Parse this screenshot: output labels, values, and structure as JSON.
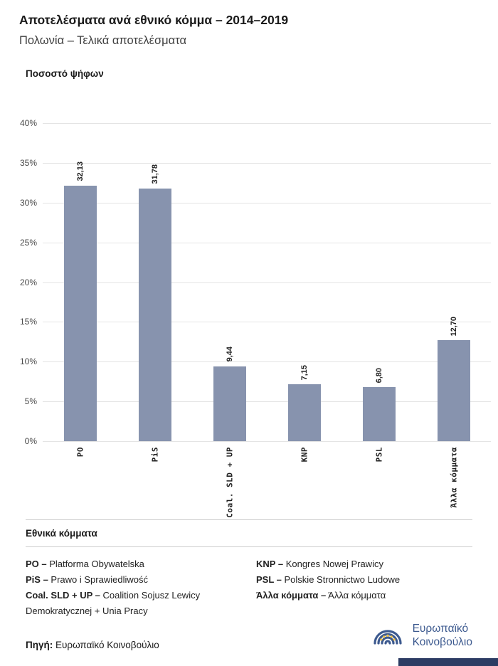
{
  "header": {
    "title": "Αποτελέσματα ανά εθνικό κόμμα – 2014–2019",
    "subtitle": "Πολωνία – Τελικά αποτελέσματα"
  },
  "chart_data": {
    "type": "bar",
    "title": "Ποσοστό ψήφων",
    "categories": [
      "PO",
      "PiS",
      "Coal. SLD + UP",
      "KNP",
      "PSL",
      "Άλλα κόμματα"
    ],
    "values": [
      32.13,
      31.78,
      9.44,
      7.15,
      6.8,
      12.7
    ],
    "value_labels": [
      "32,13",
      "31,78",
      "9,44",
      "7,15",
      "6,80",
      "12,70"
    ],
    "xlabel": "",
    "ylabel": "Ποσοστό ψήφων",
    "ylim": [
      0,
      40
    ],
    "ytick_step": 5,
    "ytick_labels": [
      "0%",
      "5%",
      "10%",
      "15%",
      "20%",
      "25%",
      "30%",
      "35%",
      "40%"
    ],
    "grid": true,
    "legend_position": "none",
    "bar_color": "#8793ae"
  },
  "legend": {
    "title": "Εθνικά κόμματα",
    "items": [
      {
        "abbr": "PO –",
        "name": "Platforma Obywatelska"
      },
      {
        "abbr": "PiS –",
        "name": "Prawo i Sprawiedliwość"
      },
      {
        "abbr": "Coal. SLD + UP –",
        "name": "Coalition Sojusz Lewicy Demokratycznej + Unia Pracy"
      },
      {
        "abbr": "KNP –",
        "name": "Kongres Nowej Prawicy"
      },
      {
        "abbr": "PSL –",
        "name": "Polskie Stronnictwo Ludowe"
      },
      {
        "abbr": "Άλλα κόμματα –",
        "name": "Άλλα κόμματα"
      }
    ]
  },
  "footer": {
    "source_label": "Πηγή:",
    "source_text": "Ευρωπαϊκό Κοινοβούλιο",
    "logo_line1": "Ευρωπαϊκό",
    "logo_line2": "Κοινοβούλιο"
  },
  "colors": {
    "bar": "#8793ae",
    "navy_bar": "#2c3c63",
    "logo_blue": "#3d5a8f",
    "star_gold": "#f5c544"
  }
}
